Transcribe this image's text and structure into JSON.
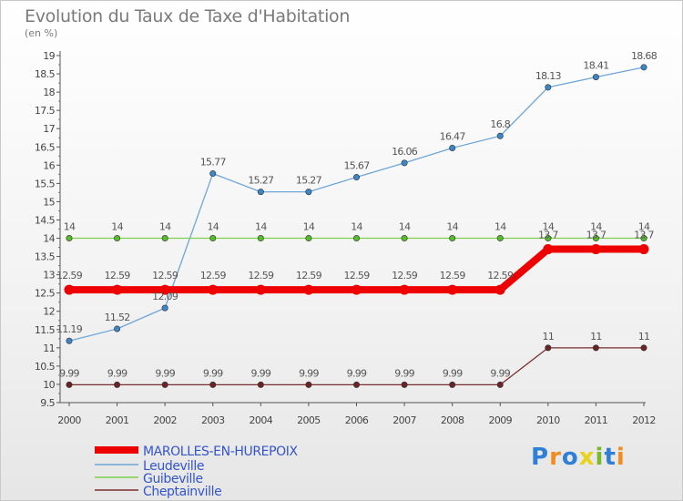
{
  "title": "Evolution du Taux de Taxe d'Habitation",
  "unit_label": "(en %)",
  "logo": {
    "letters": [
      {
        "ch": "P",
        "color": "#2f7fd6"
      },
      {
        "ch": "r",
        "color": "#f28c1e"
      },
      {
        "ch": "o",
        "color": "#2f7fd6"
      },
      {
        "ch": "x",
        "color": "#e8d21a"
      },
      {
        "ch": "i",
        "color": "#7ab82c"
      },
      {
        "ch": "t",
        "color": "#2f7fd6"
      },
      {
        "ch": "i",
        "color": "#f28c1e"
      }
    ]
  },
  "chart_data": {
    "type": "line",
    "x": [
      "2000",
      "2001",
      "2002",
      "2003",
      "2004",
      "2005",
      "2006",
      "2007",
      "2008",
      "2009",
      "2010",
      "2011",
      "2012"
    ],
    "ylim": [
      9.5,
      19
    ],
    "yticks": [
      "9.5",
      "10",
      "10.5",
      "11",
      "11.5",
      "12",
      "12.5",
      "13",
      "13.5",
      "14",
      "14.5",
      "15",
      "15.5",
      "16",
      "16.5",
      "17",
      "17.5",
      "18",
      "18.5",
      "19"
    ],
    "grid": false,
    "legend_position": "bottom-left",
    "series": [
      {
        "name": "MAROLLES-EN-HUREPOIX",
        "color": "#ee0000",
        "marker": "#ee0000",
        "width": 8,
        "values": [
          12.59,
          12.59,
          12.59,
          12.59,
          12.59,
          12.59,
          12.59,
          12.59,
          12.59,
          12.59,
          13.7,
          13.7,
          13.7
        ],
        "labels": [
          "12.59",
          "12.59",
          "12.59",
          "12.59",
          "12.59",
          "12.59",
          "12.59",
          "12.59",
          "12.59",
          "12.59",
          "13.7",
          "13.7",
          "13.7"
        ]
      },
      {
        "name": "Leudeville",
        "color": "#6fa6d6",
        "marker": "#3d86c6",
        "width": 1.3,
        "values": [
          11.19,
          11.52,
          12.09,
          15.77,
          15.27,
          15.27,
          15.67,
          16.06,
          16.47,
          16.8,
          18.13,
          18.41,
          18.68
        ],
        "labels": [
          "11.19",
          "11.52",
          "12.09",
          "15.77",
          "15.27",
          "15.27",
          "15.67",
          "16.06",
          "16.47",
          "16.8",
          "18.13",
          "18.41",
          "18.68"
        ]
      },
      {
        "name": "Guibeville",
        "color": "#7ed04e",
        "marker": "#55bb2a",
        "width": 1.3,
        "values": [
          14,
          14,
          14,
          14,
          14,
          14,
          14,
          14,
          14,
          14,
          14,
          14,
          14
        ],
        "labels": [
          "14",
          "14",
          "14",
          "14",
          "14",
          "14",
          "14",
          "14",
          "14",
          "14",
          "14",
          "14",
          "14"
        ]
      },
      {
        "name": "Cheptainville",
        "color": "#7a2e2e",
        "marker": "#6b2424",
        "width": 1.3,
        "values": [
          9.99,
          9.99,
          9.99,
          9.99,
          9.99,
          9.99,
          9.99,
          9.99,
          9.99,
          9.99,
          11,
          11,
          11
        ],
        "labels": [
          "9.99",
          "9.99",
          "9.99",
          "9.99",
          "9.99",
          "9.99",
          "9.99",
          "9.99",
          "9.99",
          "9.99",
          "11",
          "11",
          "11"
        ]
      }
    ],
    "legend_text_color": "#3355cc"
  }
}
